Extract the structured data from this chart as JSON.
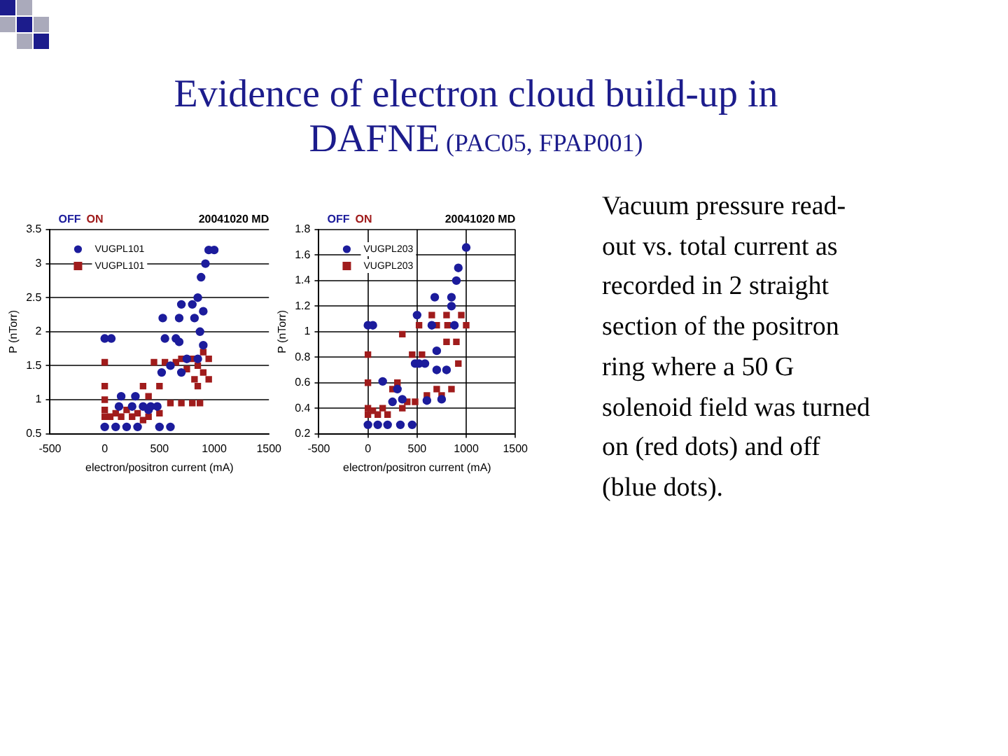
{
  "chart_data": [
    {
      "type": "other",
      "title": "Evidence of electron cloud build-up in DAFNE",
      "subtitle": "(PAC05, FPAP001)",
      "annotations": [
        "Vacuum pressure read-out vs. total current as recorded in 2 straight section of the positron ring where a 50 G solenoid field was turned on (red dots) and off (blue dots)."
      ]
    },
    {
      "type": "scatter",
      "xlabel": "electron/positron current (mA)",
      "ylabel": "P (nTorr)",
      "xlim": [
        -500,
        1500
      ],
      "xticks": [
        -500,
        0,
        500,
        1000,
        1500
      ],
      "ylim": [
        0.5,
        3.5
      ],
      "yticks": [
        0.5,
        1,
        1.5,
        2,
        2.5,
        3,
        3.5
      ],
      "grid": "y",
      "legend": "top left",
      "annotations": [
        "OFF",
        "ON",
        "20041020 MD"
      ],
      "series": [
        {
          "name": "VUGPL101",
          "color": "#1c1c9c",
          "marker": "circle",
          "x": [
            0,
            0,
            60,
            100,
            130,
            150,
            200,
            250,
            280,
            300,
            350,
            400,
            420,
            480,
            500,
            520,
            530,
            550,
            600,
            600,
            650,
            680,
            680,
            700,
            700,
            750,
            800,
            820,
            850,
            850,
            870,
            880,
            900,
            900,
            920,
            950,
            1000
          ],
          "values": [
            0.6,
            1.9,
            1.9,
            0.6,
            0.9,
            1.05,
            0.6,
            0.9,
            1.05,
            0.6,
            0.9,
            0.85,
            0.9,
            0.9,
            0.6,
            1.4,
            2.2,
            1.9,
            0.6,
            1.5,
            1.9,
            1.85,
            2.2,
            2.4,
            1.4,
            1.6,
            2.4,
            2.2,
            2.5,
            1.6,
            2.0,
            2.8,
            2.3,
            1.8,
            3.0,
            3.2,
            3.2
          ]
        },
        {
          "name": "VUGPL101",
          "color": "#a01c1c",
          "marker": "square",
          "x": [
            0,
            0,
            0,
            0,
            0,
            50,
            100,
            150,
            200,
            250,
            300,
            350,
            350,
            400,
            400,
            450,
            500,
            500,
            550,
            600,
            650,
            700,
            700,
            750,
            800,
            800,
            820,
            850,
            850,
            870,
            900,
            900,
            950,
            950
          ],
          "values": [
            0.75,
            0.85,
            1.0,
            1.2,
            1.55,
            0.75,
            0.8,
            0.75,
            0.85,
            0.75,
            0.8,
            0.7,
            1.2,
            1.05,
            0.75,
            1.55,
            0.8,
            1.2,
            1.55,
            0.95,
            1.55,
            0.95,
            1.6,
            1.45,
            0.95,
            1.6,
            1.3,
            1.5,
            1.2,
            0.95,
            1.7,
            1.4,
            1.6,
            1.3
          ]
        }
      ]
    },
    {
      "type": "scatter",
      "xlabel": "electron/positron current (mA)",
      "ylabel": "P (nTorr)",
      "xlim": [
        -500,
        1500
      ],
      "xticks": [
        -500,
        0,
        500,
        1000,
        1500
      ],
      "ylim": [
        0.2,
        1.8
      ],
      "yticks": [
        0.2,
        0.4,
        0.6,
        0.8,
        1,
        1.2,
        1.4,
        1.6,
        1.8
      ],
      "grid": true,
      "legend": "top left",
      "annotations": [
        "OFF",
        "ON",
        "20041020 MD"
      ],
      "series": [
        {
          "name": "VUGPL203",
          "color": "#1c1c9c",
          "marker": "circle",
          "x": [
            0,
            0,
            50,
            100,
            150,
            200,
            250,
            300,
            330,
            350,
            450,
            480,
            500,
            520,
            580,
            600,
            650,
            680,
            700,
            700,
            750,
            800,
            850,
            850,
            880,
            900,
            920,
            1000
          ],
          "values": [
            0.27,
            1.05,
            1.05,
            0.27,
            0.61,
            0.27,
            0.45,
            0.55,
            0.27,
            0.47,
            0.27,
            0.75,
            1.13,
            0.75,
            0.75,
            0.46,
            1.05,
            1.27,
            0.85,
            0.7,
            0.47,
            0.7,
            1.2,
            1.27,
            1.05,
            1.4,
            1.5,
            1.66
          ]
        },
        {
          "name": "VUGPL203",
          "color": "#a01c1c",
          "marker": "square",
          "x": [
            0,
            0,
            0,
            0,
            50,
            100,
            150,
            200,
            250,
            300,
            350,
            350,
            400,
            450,
            480,
            520,
            550,
            600,
            650,
            700,
            700,
            750,
            800,
            800,
            850,
            810,
            900,
            920,
            950,
            1000
          ],
          "values": [
            0.35,
            0.4,
            0.6,
            0.82,
            0.38,
            0.35,
            0.4,
            0.35,
            0.55,
            0.6,
            0.4,
            0.98,
            0.45,
            0.82,
            0.45,
            1.05,
            0.82,
            0.5,
            1.13,
            0.55,
            1.05,
            0.5,
            1.13,
            0.92,
            0.55,
            1.05,
            0.92,
            0.75,
            1.13,
            1.05
          ]
        }
      ]
    }
  ]
}
